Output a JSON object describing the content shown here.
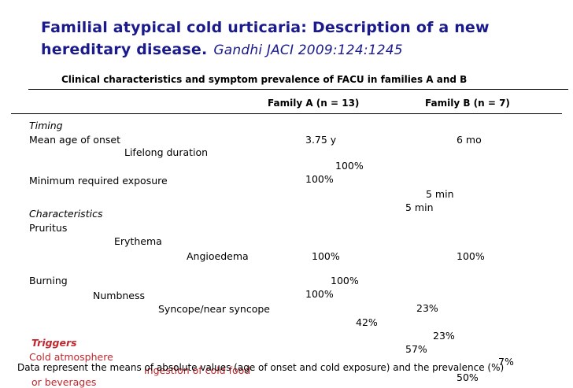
{
  "title": {
    "line1": "Familial atypical cold urticaria: Description of a new",
    "line2": "hereditary disease.",
    "citation": "Gandhi JACI 2009:124:1245"
  },
  "subtitle": "Clinical characteristics and symptom prevalence of FACU in families A and B",
  "columns": {
    "family_a": "Family A (n = 13)",
    "family_b": "Family B (n = 7)"
  },
  "rows": {
    "timing": "Timing",
    "mean_age_onset": "Mean age of onset",
    "lifelong_duration": "Lifelong duration",
    "minimum_exposure": "Minimum required exposure",
    "characteristics": "Characteristics",
    "pruritus": "Pruritus",
    "erythema": "Erythema",
    "angioedema": "Angioedema",
    "burning": "Burning",
    "numbness": "Numbness",
    "syncope": "Syncope/near syncope",
    "triggers": "Triggers",
    "cold_atmosphere": "Cold atmosphere",
    "ingestion": "Ingestion of cold food",
    "or_beverages": "or beverages"
  },
  "values": {
    "a_mean_age": "3.75 y",
    "b_mean_age": "6 mo",
    "v_100_1": "100%",
    "v_100_2": "100%",
    "v_5min_1": "5 min",
    "v_5min_2": "5 min",
    "v_100_3": "100%",
    "v_100_4": "100%",
    "v_100_5": "100%",
    "v_100_6": "100%",
    "v_23_1": "23%",
    "v_42": "42%",
    "v_23_2": "23%",
    "v_57": "57%",
    "v_7": "7%",
    "v_50": "50%"
  },
  "footnote": "Data represent the means of absolute values (age of onset and cold exposure) and the prevalence (%)",
  "colors": {
    "title": "#1a1a8c",
    "trigger": "#c1272d"
  }
}
